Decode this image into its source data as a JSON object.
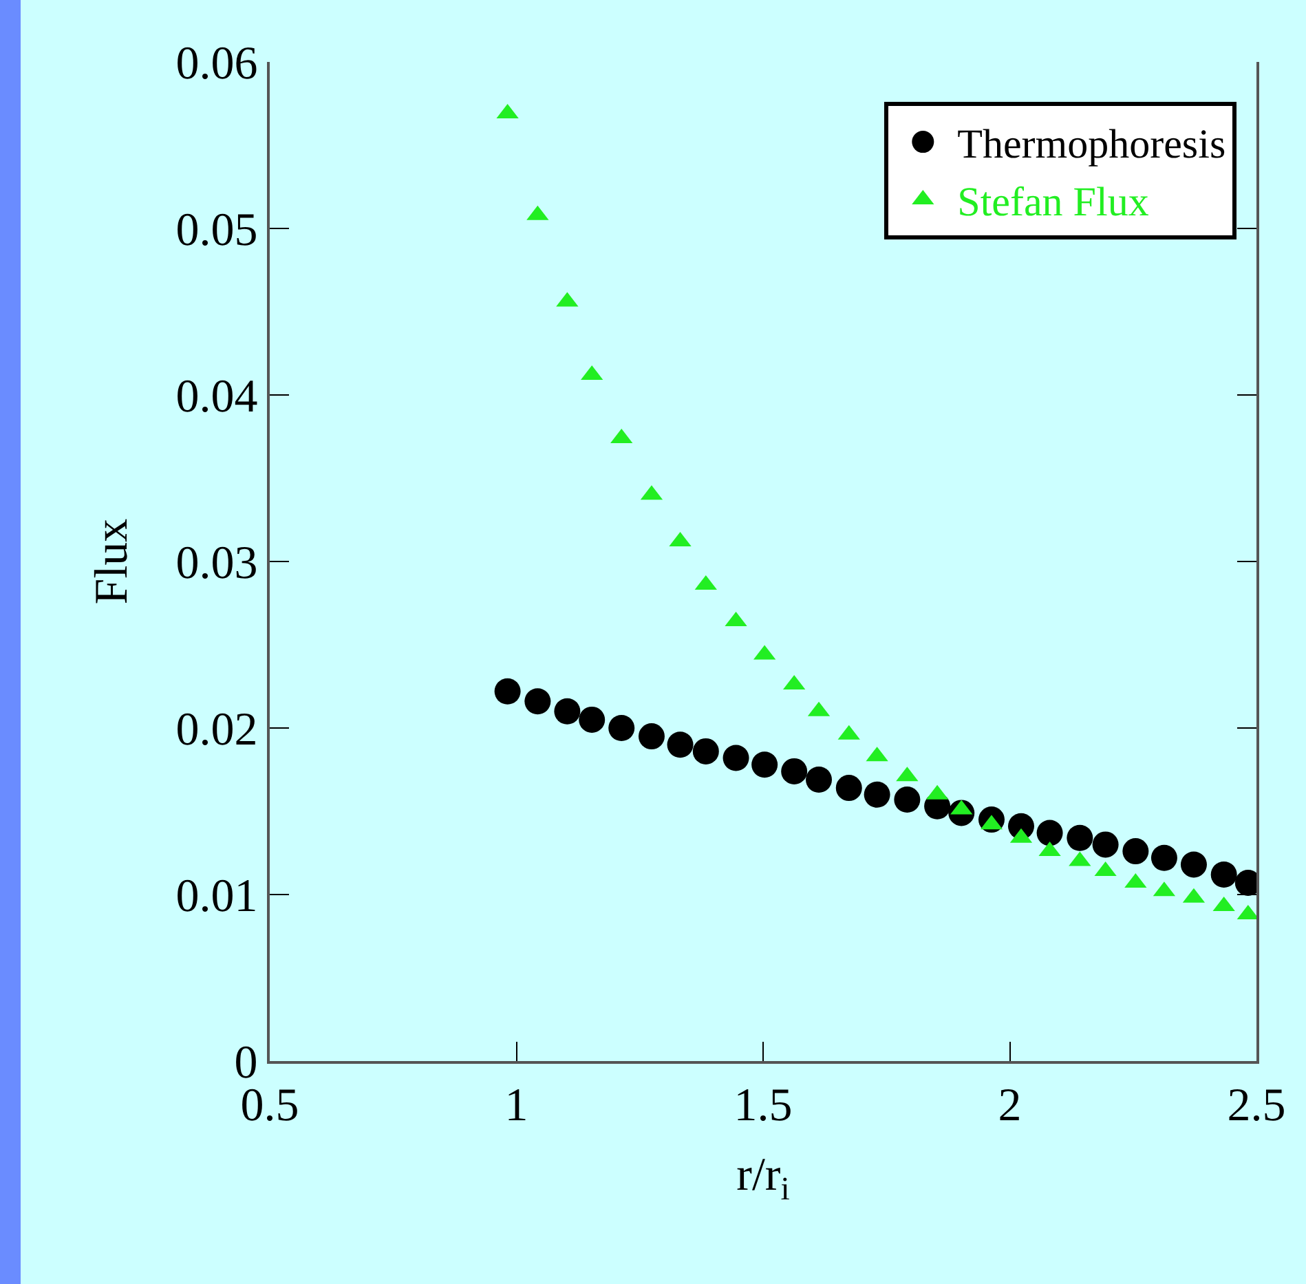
{
  "chart_data": {
    "type": "scatter",
    "xlabel": "r/r$_{i}$",
    "ylabel": "Flux",
    "x": [
      0.982,
      1.043,
      1.103,
      1.153,
      1.213,
      1.274,
      1.332,
      1.384,
      1.445,
      1.503,
      1.563,
      1.613,
      1.674,
      1.731,
      1.792,
      1.853,
      1.902,
      1.963,
      2.023,
      2.081,
      2.142,
      2.194,
      2.255,
      2.313,
      2.373,
      2.434,
      2.483
    ],
    "series": [
      {
        "name": "Thermophoresis",
        "color": "#000000",
        "marker": "circle",
        "values": [
          0.0222,
          0.0216,
          0.021,
          0.0205,
          0.02,
          0.0195,
          0.019,
          0.0186,
          0.0182,
          0.0178,
          0.0174,
          0.0169,
          0.0164,
          0.016,
          0.0157,
          0.0153,
          0.0149,
          0.0145,
          0.0141,
          0.0137,
          0.0134,
          0.013,
          0.0126,
          0.0122,
          0.0118,
          0.0112,
          0.0107
        ]
      },
      {
        "name": "Stefan Flux",
        "color": "#22ee22",
        "marker": "triangle",
        "values": [
          0.0569,
          0.0508,
          0.0456,
          0.0412,
          0.0374,
          0.034,
          0.0312,
          0.0286,
          0.0264,
          0.0244,
          0.0226,
          0.021,
          0.0196,
          0.0183,
          0.0171,
          0.016,
          0.0151,
          0.0142,
          0.0134,
          0.0126,
          0.012,
          0.0114,
          0.0107,
          0.0102,
          0.0098,
          0.0093,
          0.0088
        ]
      }
    ],
    "xlim": [
      0.5,
      2.5
    ],
    "xticks": [
      0.5,
      1,
      1.5,
      2,
      2.5
    ],
    "ylim": [
      0,
      0.06
    ],
    "yticks": [
      0,
      0.01,
      0.02,
      0.03,
      0.04,
      0.05,
      0.06
    ],
    "grid": false,
    "legend": "top right"
  }
}
